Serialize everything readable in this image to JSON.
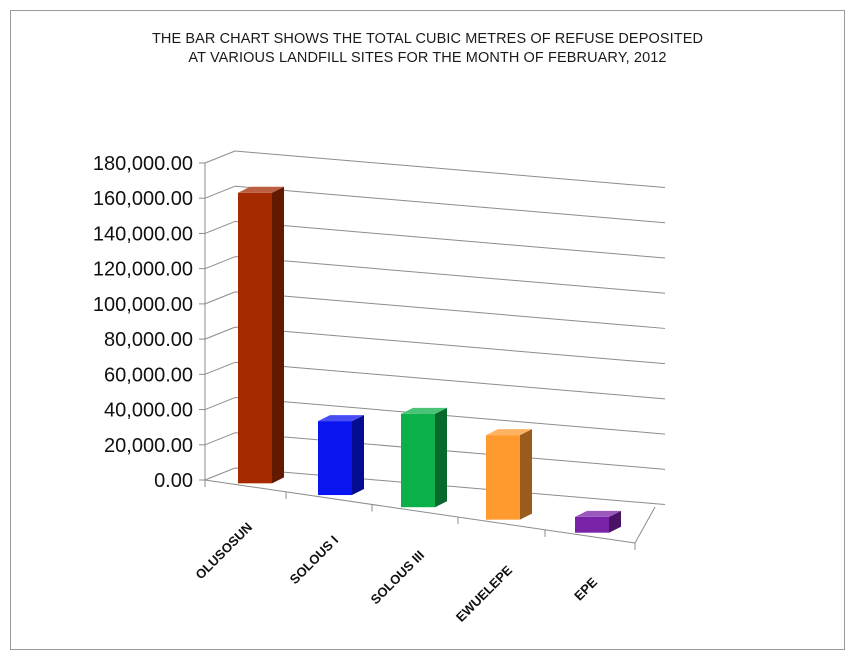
{
  "chart_data": {
    "type": "bar",
    "title_lines": [
      "THE BAR CHART SHOWS THE TOTAL CUBIC METRES OF REFUSE  DEPOSITED",
      "AT VARIOUS LANDFILL SITES FOR THE MONTH OF FEBRUARY, 2012"
    ],
    "categories": [
      "OLUSOSUN",
      "SOLOUS I",
      "SOLOUS III",
      "EWUELEPE",
      "EPE"
    ],
    "values": [
      165000,
      42000,
      53000,
      48000,
      9000
    ],
    "colors": [
      "#a52a00",
      "#0a14f0",
      "#0cb04a",
      "#ff9a2e",
      "#7a22a8"
    ],
    "ylim": [
      0,
      180000
    ],
    "yticks": [
      0,
      20000,
      40000,
      60000,
      80000,
      100000,
      120000,
      140000,
      160000,
      180000
    ],
    "ytick_labels": [
      "0.00",
      "20,000.00",
      "40,000.00",
      "60,000.00",
      "80,000.00",
      "100,000.00",
      "120,000.00",
      "140,000.00",
      "160,000.00",
      "180,000.00"
    ],
    "grid": true,
    "legend": "none",
    "style": "3d-column"
  }
}
